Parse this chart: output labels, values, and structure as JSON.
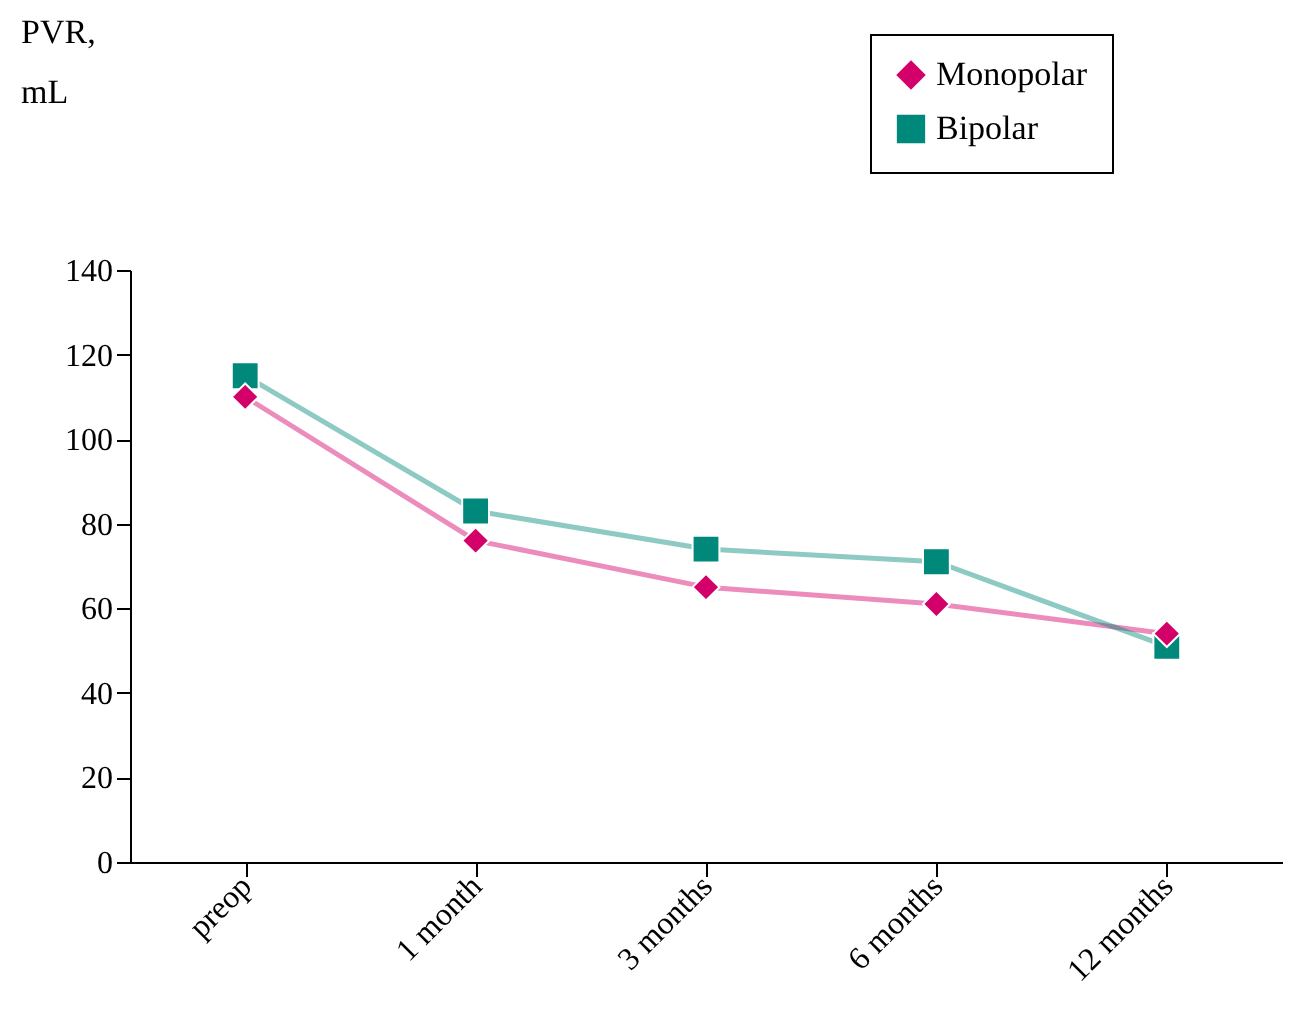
{
  "chart_data": {
    "type": "line",
    "ylabel": "PVR, mL",
    "categories": [
      "preop",
      "1 month",
      "3 months",
      "6 months",
      "12 months"
    ],
    "series": [
      {
        "name": "Monopolar",
        "color": "#d4006a",
        "marker": "diamond",
        "values": [
          110,
          76,
          65,
          61,
          54
        ]
      },
      {
        "name": "Bipolar",
        "color": "#00897b",
        "marker": "square",
        "values": [
          115,
          83,
          74,
          71,
          51
        ]
      }
    ],
    "ylim": [
      0,
      140
    ],
    "yticks": [
      0,
      20,
      40,
      60,
      80,
      100,
      120,
      140
    ],
    "grid": false,
    "legend": "top right",
    "line_style": "solid"
  }
}
